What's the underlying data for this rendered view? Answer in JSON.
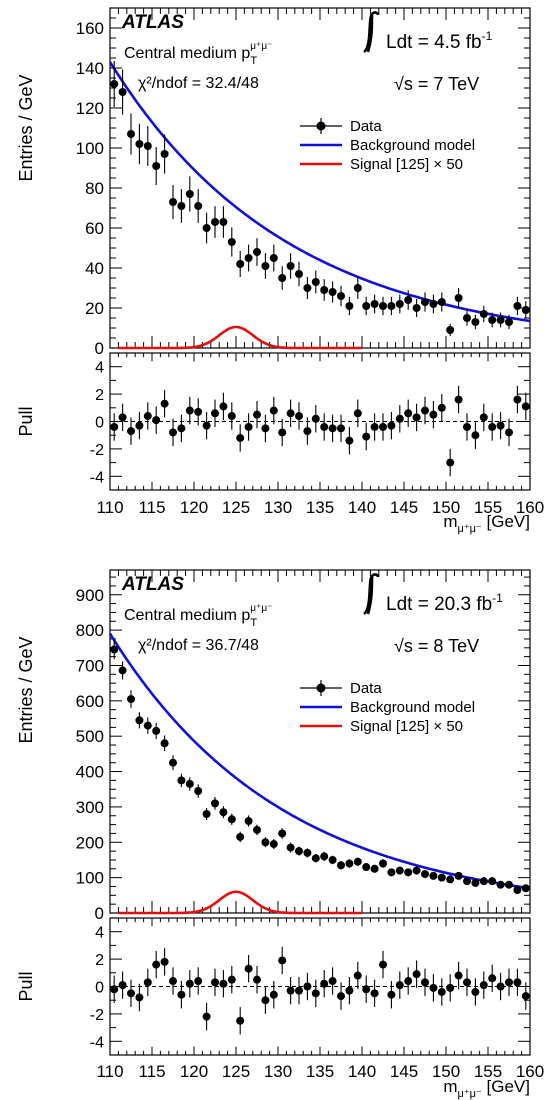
{
  "colors": {
    "data": "#000000",
    "background_model": "#1010d8",
    "signal": "#e01010"
  },
  "chart_data": [
    {
      "type": "scatter",
      "experiment": "ATLAS",
      "category_label": "Central medium p",
      "category_sub": "T",
      "category_sup": "μ⁺μ⁻",
      "chi2_text": "χ²/ndof = 32.4/48",
      "lumi_prefix": "Ldt = 4.5 fb",
      "lumi_exp": "-1",
      "energy_text": "√s = 7 TeV",
      "ylabel": "Entries / GeV",
      "pull_ylabel": "Pull",
      "xlabel": "m",
      "xlabel_sub": "μ⁺μ⁻",
      "xlabel_unit": " [GeV]",
      "xlim": [
        110,
        160
      ],
      "ylim": [
        0,
        170
      ],
      "yticks": [
        0,
        20,
        40,
        60,
        80,
        100,
        120,
        140,
        160
      ],
      "pull_ylim": [
        -5,
        5
      ],
      "pull_yticks": [
        4,
        2,
        0,
        -2,
        -4
      ],
      "xticks": [
        110,
        115,
        120,
        125,
        130,
        135,
        140,
        145,
        150,
        155,
        160
      ],
      "legend": [
        "Data",
        "Background model",
        "Signal [125] × 50"
      ],
      "legend_position": "top-right",
      "x": [
        110.5,
        111.5,
        112.5,
        113.5,
        114.5,
        115.5,
        116.5,
        117.5,
        118.5,
        119.5,
        120.5,
        121.5,
        122.5,
        123.5,
        124.5,
        125.5,
        126.5,
        127.5,
        128.5,
        129.5,
        130.5,
        131.5,
        132.5,
        133.5,
        134.5,
        135.5,
        136.5,
        137.5,
        138.5,
        139.5,
        140.5,
        141.5,
        142.5,
        143.5,
        144.5,
        145.5,
        146.5,
        147.5,
        148.5,
        149.5,
        150.5,
        151.5,
        152.5,
        153.5,
        154.5,
        155.5,
        156.5,
        157.5,
        158.5,
        159.5
      ],
      "values": [
        132,
        128,
        107,
        102,
        101,
        91,
        97,
        73,
        71,
        77,
        71,
        60,
        63,
        63,
        53,
        42,
        45,
        48,
        41,
        45,
        35,
        41,
        37,
        30,
        33,
        29,
        28,
        26,
        21,
        30,
        21,
        22,
        21,
        21,
        22,
        24,
        20,
        23,
        22,
        23,
        9,
        25,
        15,
        13,
        17,
        14,
        14,
        13,
        21,
        19
      ],
      "errors": [
        11.5,
        11.3,
        10.3,
        10.1,
        10.0,
        9.5,
        9.8,
        8.5,
        8.4,
        8.8,
        8.4,
        7.7,
        7.9,
        7.9,
        7.3,
        6.5,
        6.7,
        6.9,
        6.4,
        6.7,
        5.9,
        6.4,
        6.1,
        5.5,
        5.7,
        5.4,
        5.3,
        5.1,
        4.6,
        5.5,
        4.6,
        4.7,
        4.6,
        4.6,
        4.7,
        4.9,
        4.5,
        4.8,
        4.7,
        4.8,
        3.0,
        5.0,
        3.9,
        3.6,
        4.1,
        3.7,
        3.7,
        3.6,
        4.6,
        4.4
      ],
      "pull": [
        -0.4,
        0.3,
        -0.7,
        -0.3,
        0.4,
        0.1,
        1.3,
        -0.8,
        -0.5,
        0.8,
        0.7,
        -0.3,
        0.6,
        1.1,
        0.4,
        -1.2,
        -0.4,
        0.5,
        -0.5,
        0.8,
        -0.8,
        0.6,
        0.4,
        -0.7,
        0.2,
        -0.4,
        -0.5,
        -0.5,
        -1.4,
        0.6,
        -1.1,
        -0.4,
        -0.4,
        -0.3,
        0.2,
        0.6,
        0.3,
        0.8,
        0.5,
        1.0,
        -3.0,
        1.6,
        -0.4,
        -1.0,
        0.3,
        -0.4,
        -0.3,
        -0.8,
        1.6,
        1.1
      ],
      "background_model": {
        "formula": "exponential",
        "at_110": 143,
        "at_160": 13.5
      },
      "signal": {
        "mass": 125,
        "peak": 10.5,
        "sigma": 2.0,
        "range": [
          111,
          140
        ]
      }
    },
    {
      "type": "scatter",
      "experiment": "ATLAS",
      "category_label": "Central medium p",
      "category_sub": "T",
      "category_sup": "μ⁺μ⁻",
      "chi2_text": "χ²/ndof = 36.7/48",
      "lumi_prefix": "Ldt = 20.3 fb",
      "lumi_exp": "-1",
      "energy_text": "√s = 8 TeV",
      "ylabel": "Entries / GeV",
      "pull_ylabel": "Pull",
      "xlabel": "m",
      "xlabel_sub": "μ⁺μ⁻",
      "xlabel_unit": " [GeV]",
      "xlim": [
        110,
        160
      ],
      "ylim": [
        0,
        970
      ],
      "yticks": [
        0,
        100,
        200,
        300,
        400,
        500,
        600,
        700,
        800,
        900
      ],
      "pull_ylim": [
        -5,
        5
      ],
      "pull_yticks": [
        4,
        2,
        0,
        -2,
        -4
      ],
      "xticks": [
        110,
        115,
        120,
        125,
        130,
        135,
        140,
        145,
        150,
        155,
        160
      ],
      "legend": [
        "Data",
        "Background model",
        "Signal [125] × 50"
      ],
      "legend_position": "top-right",
      "x": [
        110.5,
        111.5,
        112.5,
        113.5,
        114.5,
        115.5,
        116.5,
        117.5,
        118.5,
        119.5,
        120.5,
        121.5,
        122.5,
        123.5,
        124.5,
        125.5,
        126.5,
        127.5,
        128.5,
        129.5,
        130.5,
        131.5,
        132.5,
        133.5,
        134.5,
        135.5,
        136.5,
        137.5,
        138.5,
        139.5,
        140.5,
        141.5,
        142.5,
        143.5,
        144.5,
        145.5,
        146.5,
        147.5,
        148.5,
        149.5,
        150.5,
        151.5,
        152.5,
        153.5,
        154.5,
        155.5,
        156.5,
        157.5,
        158.5,
        159.5
      ],
      "values": [
        745,
        686,
        605,
        545,
        530,
        515,
        480,
        425,
        375,
        365,
        345,
        280,
        310,
        285,
        265,
        215,
        260,
        235,
        200,
        195,
        225,
        185,
        175,
        170,
        155,
        160,
        150,
        135,
        140,
        145,
        130,
        125,
        140,
        115,
        120,
        115,
        120,
        110,
        105,
        100,
        95,
        105,
        90,
        85,
        90,
        90,
        80,
        80,
        65,
        70
      ],
      "errors": [
        27,
        26,
        25,
        23,
        23,
        23,
        22,
        21,
        19,
        19,
        19,
        17,
        18,
        17,
        16,
        15,
        16,
        15,
        14,
        14,
        15,
        14,
        13,
        13,
        12,
        13,
        12,
        12,
        12,
        12,
        11,
        11,
        12,
        11,
        11,
        11,
        11,
        10,
        10,
        10,
        10,
        10,
        9,
        9,
        9,
        9,
        9,
        9,
        8,
        8
      ],
      "pull": [
        -0.2,
        0.1,
        -0.5,
        -0.8,
        0.3,
        1.6,
        1.8,
        0.4,
        -0.6,
        0.2,
        0.4,
        -2.2,
        0.3,
        0.2,
        0.5,
        -2.5,
        1.3,
        0.5,
        -1.0,
        -0.6,
        1.9,
        -0.3,
        -0.3,
        0.0,
        -0.5,
        0.2,
        0.4,
        -0.7,
        -0.3,
        0.8,
        -0.2,
        -0.5,
        1.6,
        -0.6,
        0.1,
        0.4,
        0.9,
        0.3,
        -0.1,
        -0.4,
        -0.1,
        0.8,
        0.3,
        -0.4,
        0.1,
        0.6,
        0.0,
        0.3,
        0.3,
        -0.7
      ],
      "background_model": {
        "formula": "exponential",
        "at_110": 790,
        "at_160": 70
      },
      "signal": {
        "mass": 125,
        "peak": 60,
        "sigma": 2.0,
        "range": [
          111,
          140
        ]
      }
    }
  ]
}
